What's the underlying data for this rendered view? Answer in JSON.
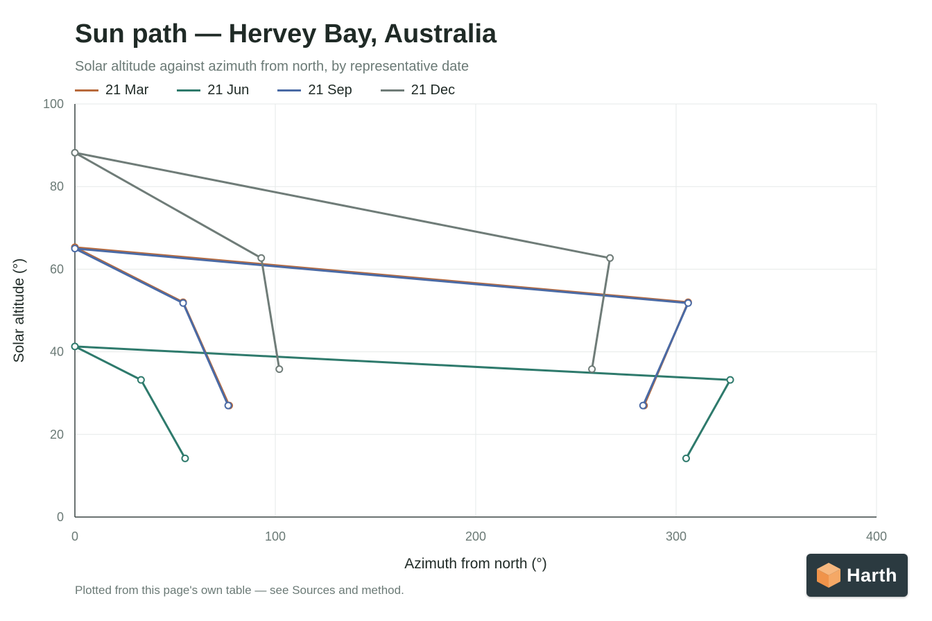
{
  "header": {
    "title": "Sun path — Hervey Bay, Australia",
    "subtitle": "Solar altitude against azimuth from north, by representative date"
  },
  "footnote": "Plotted from this page's own table — see Sources and method.",
  "logo": {
    "text": "Harth",
    "icon": "cube-icon"
  },
  "chart_data": {
    "type": "line",
    "title": "Sun path — Hervey Bay, Australia",
    "subtitle": "Solar altitude against azimuth from north, by representative date",
    "xlabel": "Azimuth from north (°)",
    "ylabel": "Solar altitude (°)",
    "xlim": [
      0,
      400
    ],
    "ylim": [
      0,
      100
    ],
    "xticks": [
      0,
      100,
      200,
      300,
      400
    ],
    "yticks": [
      0,
      20,
      40,
      60,
      80,
      100
    ],
    "grid": true,
    "legend_position": "top-left",
    "series": [
      {
        "name": "21 Mar",
        "color": "#b86a3c",
        "points": [
          [
            77,
            27
          ],
          [
            54,
            52
          ],
          [
            0,
            65.3
          ],
          [
            306,
            52
          ],
          [
            284,
            27
          ]
        ]
      },
      {
        "name": "21 Jun",
        "color": "#2e7a6c",
        "points": [
          [
            55,
            14.2
          ],
          [
            33,
            33.2
          ],
          [
            0,
            41.3
          ],
          [
            327,
            33.2
          ],
          [
            305,
            14.2
          ]
        ]
      },
      {
        "name": "21 Sep",
        "color": "#4a6aa5",
        "points": [
          [
            76.5,
            27
          ],
          [
            54,
            51.8
          ],
          [
            0,
            65
          ],
          [
            306,
            51.8
          ],
          [
            283.5,
            27
          ]
        ]
      },
      {
        "name": "21 Dec",
        "color": "#6f7c78",
        "points": [
          [
            102,
            35.8
          ],
          [
            93,
            62.7
          ],
          [
            0,
            88.2
          ],
          [
            267,
            62.7
          ],
          [
            258,
            35.8
          ]
        ]
      }
    ]
  }
}
